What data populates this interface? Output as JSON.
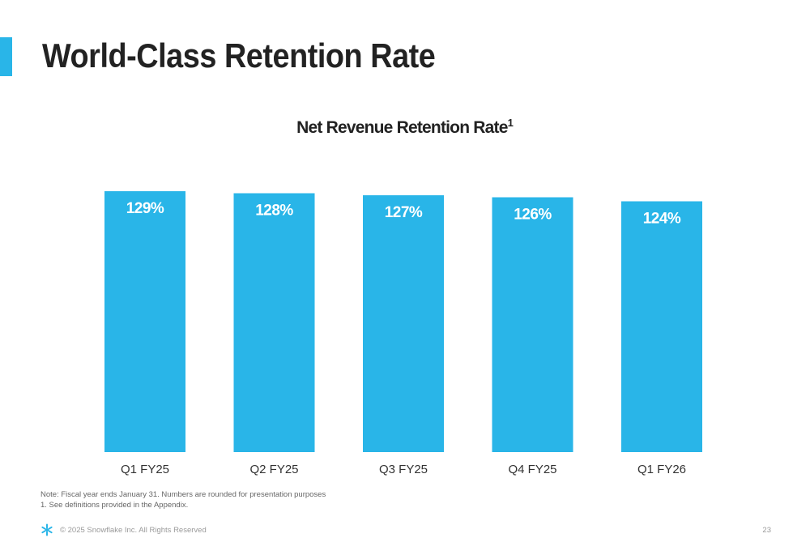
{
  "slide": {
    "title": "World-Class Retention Rate",
    "page_number": "23",
    "copyright": "© 2025 Snowflake Inc. All Rights Reserved"
  },
  "notes": [
    "Note: Fiscal year ends January 31. Numbers are rounded for presentation purposes",
    "1.  See definitions provided in the Appendix."
  ],
  "colors": {
    "accent": "#29B5E8",
    "bar": "#29B5E8",
    "title_text": "#222222",
    "label_text": "#ffffff"
  },
  "icons": {
    "footer_logo": "snowflake-logo-icon"
  },
  "chart_data": {
    "type": "bar",
    "title": "Net Revenue Retention Rate",
    "title_footnote": "1",
    "categories": [
      "Q1 FY25",
      "Q2 FY25",
      "Q3 FY25",
      "Q4 FY25",
      "Q1 FY26"
    ],
    "values": [
      129,
      128,
      127,
      126,
      124
    ],
    "data_labels": [
      "129%",
      "128%",
      "127%",
      "126%",
      "124%"
    ],
    "value_unit": "%",
    "ylim": [
      0,
      129
    ],
    "grid": false,
    "legend": "none"
  }
}
